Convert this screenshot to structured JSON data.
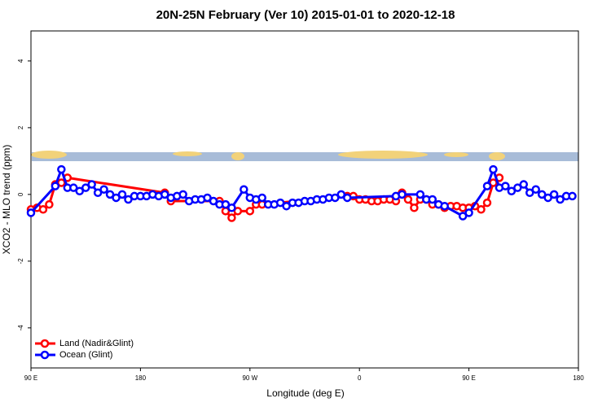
{
  "chart_data": {
    "type": "line",
    "title": "20N-25N February (Ver 10)   2015-01-01 to 2020-12-18",
    "xlabel": "Longitude (deg E)",
    "ylabel": "XCO2 - MLO trend (ppm)",
    "xlim": [
      90,
      540
    ],
    "xticks": [
      {
        "value": 90,
        "label": "90 E"
      },
      180,
      {
        "value": 270,
        "label": "90 W"
      },
      {
        "value": 360,
        "label": "0"
      },
      {
        "value": 450,
        "label": "90 E"
      },
      180
    ],
    "ylim": [
      -5.2,
      4.9
    ],
    "yticks": [
      -4,
      -2,
      0,
      2,
      4
    ],
    "legend": "bottom-left",
    "series": [
      {
        "name": "Land (Nadir&Glint)",
        "color": "#ff0000",
        "x": [
          90,
          95,
          100,
          105,
          110,
          115,
          120,
          200,
          205,
          245,
          250,
          255,
          260,
          270,
          275,
          280,
          350,
          355,
          360,
          365,
          370,
          375,
          380,
          385,
          390,
          395,
          400,
          405,
          410,
          415,
          420,
          425,
          430,
          435,
          440,
          445,
          450,
          455,
          460,
          465,
          470,
          475
        ],
        "values": [
          -0.45,
          -0.4,
          -0.45,
          -0.3,
          0.3,
          0.35,
          0.5,
          0.05,
          -0.2,
          -0.2,
          -0.5,
          -0.7,
          -0.5,
          -0.5,
          -0.3,
          -0.3,
          -0.05,
          -0.05,
          -0.15,
          -0.15,
          -0.2,
          -0.2,
          -0.15,
          -0.15,
          -0.2,
          0.05,
          -0.15,
          -0.4,
          -0.15,
          -0.15,
          -0.3,
          -0.3,
          -0.4,
          -0.35,
          -0.35,
          -0.4,
          -0.4,
          -0.35,
          -0.45,
          -0.25,
          0.35,
          0.5
        ]
      },
      {
        "name": "Ocean (Glint)",
        "color": "#0000ff",
        "x": [
          90,
          110,
          115,
          120,
          125,
          130,
          135,
          140,
          145,
          150,
          155,
          160,
          165,
          170,
          175,
          180,
          185,
          190,
          195,
          200,
          205,
          210,
          215,
          220,
          225,
          230,
          235,
          240,
          245,
          250,
          255,
          265,
          270,
          275,
          280,
          285,
          290,
          295,
          300,
          305,
          310,
          315,
          320,
          325,
          330,
          335,
          340,
          345,
          350,
          390,
          395,
          410,
          415,
          420,
          425,
          430,
          445,
          450,
          465,
          470,
          475,
          480,
          485,
          490,
          495,
          500,
          505,
          510,
          515,
          520,
          525,
          530,
          535
        ],
        "values": [
          -0.55,
          0.25,
          0.75,
          0.2,
          0.2,
          0.1,
          0.2,
          0.3,
          0.05,
          0.15,
          0.0,
          -0.1,
          0.0,
          -0.15,
          -0.05,
          -0.05,
          -0.05,
          0.0,
          -0.05,
          0.0,
          -0.1,
          -0.05,
          0.0,
          -0.2,
          -0.15,
          -0.15,
          -0.1,
          -0.2,
          -0.3,
          -0.3,
          -0.4,
          0.15,
          -0.1,
          -0.15,
          -0.1,
          -0.3,
          -0.3,
          -0.25,
          -0.35,
          -0.25,
          -0.25,
          -0.2,
          -0.2,
          -0.15,
          -0.15,
          -0.1,
          -0.1,
          0.0,
          -0.1,
          -0.05,
          0.0,
          0.0,
          -0.15,
          -0.15,
          -0.3,
          -0.35,
          -0.65,
          -0.55,
          0.25,
          0.75,
          0.2,
          0.25,
          0.1,
          0.2,
          0.3,
          0.05,
          0.15,
          0.0,
          -0.1,
          0.0,
          -0.15,
          -0.05,
          -0.05
        ]
      }
    ]
  }
}
